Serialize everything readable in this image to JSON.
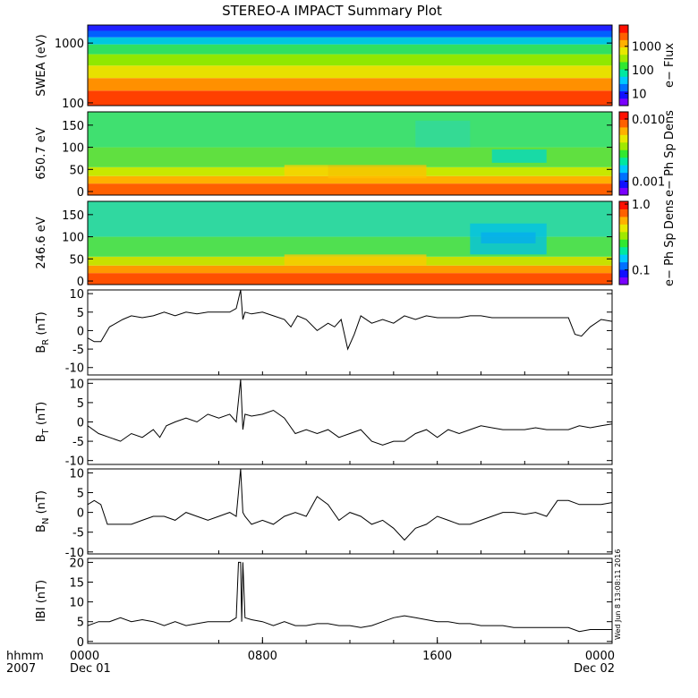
{
  "title": "STEREO-A IMPACT Summary Plot",
  "timestamp_note": "Wed Jun  8 13:08:11 2016",
  "time_axis": {
    "unit_label": "hhmm",
    "year_label": "2007",
    "ticks": [
      {
        "t": 0,
        "label": "0000",
        "sublabel": "Dec 01"
      },
      {
        "t": 8,
        "label": "0800",
        "sublabel": ""
      },
      {
        "t": 16,
        "label": "1600",
        "sublabel": ""
      },
      {
        "t": 24,
        "label": "0000",
        "sublabel": "Dec 02"
      }
    ]
  },
  "colorbar_colors": [
    "#7a00ff",
    "#1010ff",
    "#0070ff",
    "#00c8ff",
    "#00e8a0",
    "#30e830",
    "#a0e800",
    "#e8e800",
    "#ffb000",
    "#ff6000",
    "#ff1000"
  ],
  "spectrograms": [
    {
      "name": "swea",
      "ylabel": "SWEA (eV)",
      "ylog": true,
      "ylim": [
        90,
        2000
      ],
      "yticks": [
        {
          "v": 100,
          "label": "100"
        },
        {
          "v": 1000,
          "label": "1000"
        }
      ],
      "colorbar_label": "e− Flux",
      "colorbar_log": true,
      "colorbar_range": [
        3,
        8000
      ],
      "colorbar_ticks": [
        {
          "v": 10,
          "label": "10"
        },
        {
          "v": 100,
          "label": "100"
        },
        {
          "v": 1000,
          "label": "1000"
        }
      ],
      "bands": [
        {
          "from": 90,
          "to": 160,
          "color": "#ff4000"
        },
        {
          "from": 160,
          "to": 260,
          "color": "#ff9000"
        },
        {
          "from": 260,
          "to": 420,
          "color": "#e8e000"
        },
        {
          "from": 420,
          "to": 650,
          "color": "#90e800"
        },
        {
          "from": 650,
          "to": 950,
          "color": "#30e060"
        },
        {
          "from": 950,
          "to": 1250,
          "color": "#00c8e0"
        },
        {
          "from": 1250,
          "to": 1600,
          "color": "#0060ff"
        },
        {
          "from": 1600,
          "to": 2000,
          "color": "#2020ff"
        }
      ]
    },
    {
      "name": "pad650",
      "ylabel": "650.7 eV",
      "ylog": false,
      "ylim": [
        -8,
        180
      ],
      "yticks": [
        {
          "v": 0,
          "label": "0"
        },
        {
          "v": 50,
          "label": "50"
        },
        {
          "v": 100,
          "label": "100"
        },
        {
          "v": 150,
          "label": "150"
        }
      ],
      "colorbar_label": "e− Ph Sp Dens",
      "colorbar_log": true,
      "colorbar_range": [
        0.0006,
        0.013
      ],
      "colorbar_ticks": [
        {
          "v": 0.001,
          "label": "0.001"
        },
        {
          "v": 0.01,
          "label": "0.010"
        }
      ],
      "bands": [
        {
          "from": -8,
          "to": 18,
          "color": "#ff6000"
        },
        {
          "from": 18,
          "to": 35,
          "color": "#ffb000"
        },
        {
          "from": 35,
          "to": 55,
          "color": "#c8e800"
        },
        {
          "from": 55,
          "to": 100,
          "color": "#60e040"
        },
        {
          "from": 100,
          "to": 180,
          "color": "#40e070"
        }
      ],
      "patches": [
        {
          "t0": 9.0,
          "t1": 11.0,
          "y0": 35,
          "y1": 60,
          "color": "#ffd000"
        },
        {
          "t0": 11.0,
          "t1": 15.5,
          "y0": 30,
          "y1": 60,
          "color": "#ffc000"
        },
        {
          "t0": 18.5,
          "t1": 21.0,
          "y0": 65,
          "y1": 95,
          "color": "#00d8c8"
        },
        {
          "t0": 15.0,
          "t1": 17.5,
          "y0": 100,
          "y1": 160,
          "color": "#30d8a0"
        }
      ]
    },
    {
      "name": "pad246",
      "ylabel": "246.6 eV",
      "ylog": false,
      "ylim": [
        -8,
        180
      ],
      "yticks": [
        {
          "v": 0,
          "label": "0"
        },
        {
          "v": 50,
          "label": "50"
        },
        {
          "v": 100,
          "label": "100"
        },
        {
          "v": 150,
          "label": "150"
        }
      ],
      "colorbar_label": "e− Ph Sp Dens",
      "colorbar_log": true,
      "colorbar_range": [
        0.06,
        1.1
      ],
      "colorbar_ticks": [
        {
          "v": 0.1,
          "label": "0.1"
        },
        {
          "v": 1.0,
          "label": "1.0"
        }
      ],
      "bands": [
        {
          "from": -8,
          "to": 18,
          "color": "#ff5000"
        },
        {
          "from": 18,
          "to": 35,
          "color": "#ff9800"
        },
        {
          "from": 35,
          "to": 55,
          "color": "#c8e000"
        },
        {
          "from": 55,
          "to": 100,
          "color": "#50e050"
        },
        {
          "from": 100,
          "to": 180,
          "color": "#30d8a0"
        }
      ],
      "patches": [
        {
          "t0": 18.0,
          "t1": 20.5,
          "y0": 85,
          "y1": 110,
          "color": "#1070ff"
        },
        {
          "t0": 17.5,
          "t1": 21.0,
          "y0": 60,
          "y1": 130,
          "color": "#00c0e8"
        },
        {
          "t0": 9.0,
          "t1": 15.5,
          "y0": 35,
          "y1": 60,
          "color": "#ffc800"
        }
      ]
    }
  ],
  "line_panels": [
    {
      "name": "br",
      "ylabel": "B",
      "ylabel_sub": "R",
      "ylabel_unit": " (nT)",
      "ylim": [
        -12,
        11
      ],
      "yticks": [
        {
          "v": -10,
          "label": "-10"
        },
        {
          "v": -5,
          "label": "-5"
        },
        {
          "v": 0,
          "label": "0"
        },
        {
          "v": 5,
          "label": "5"
        },
        {
          "v": 10,
          "label": "10"
        }
      ],
      "t": [
        0,
        0.3,
        0.6,
        0.8,
        1.0,
        1.3,
        1.6,
        2.0,
        2.5,
        3.0,
        3.5,
        4.0,
        4.5,
        5.0,
        5.5,
        6.0,
        6.5,
        6.8,
        7.0,
        7.1,
        7.2,
        7.5,
        8.0,
        8.5,
        9.0,
        9.3,
        9.6,
        10.0,
        10.5,
        11.0,
        11.3,
        11.6,
        11.9,
        12.2,
        12.5,
        13.0,
        13.5,
        14.0,
        14.5,
        15.0,
        15.5,
        16.0,
        16.5,
        17.0,
        17.5,
        18.0,
        18.5,
        19.0,
        19.5,
        20.0,
        20.5,
        21.0,
        21.5,
        22.0,
        22.3,
        22.6,
        23.0,
        23.5,
        24.0
      ],
      "y": [
        -2,
        -3,
        -3,
        -1,
        1,
        2,
        3,
        4,
        3.5,
        4,
        5,
        4,
        5,
        4.5,
        5,
        5,
        5,
        6,
        11,
        3,
        5,
        4.5,
        5,
        4,
        3,
        1,
        4,
        3,
        0,
        2,
        1,
        3,
        -5,
        -1,
        4,
        2,
        3,
        2,
        4,
        3,
        4,
        3.5,
        3.5,
        3.5,
        4,
        4,
        3.5,
        3.5,
        3.5,
        3.5,
        3.5,
        3.5,
        3.5,
        3.5,
        -1,
        -1.5,
        1,
        3,
        2.5
      ]
    },
    {
      "name": "bt",
      "ylabel": "B",
      "ylabel_sub": "T",
      "ylabel_unit": " (nT)",
      "ylim": [
        -11,
        11
      ],
      "yticks": [
        {
          "v": -10,
          "label": "-10"
        },
        {
          "v": -5,
          "label": "-5"
        },
        {
          "v": 0,
          "label": "0"
        },
        {
          "v": 5,
          "label": "5"
        },
        {
          "v": 10,
          "label": "10"
        }
      ],
      "t": [
        0,
        0.5,
        1.0,
        1.5,
        2.0,
        2.5,
        3.0,
        3.3,
        3.6,
        4.0,
        4.5,
        5.0,
        5.5,
        6.0,
        6.5,
        6.8,
        7.0,
        7.1,
        7.2,
        7.5,
        8.0,
        8.5,
        9.0,
        9.5,
        10.0,
        10.5,
        11.0,
        11.5,
        12.0,
        12.5,
        13.0,
        13.5,
        14.0,
        14.5,
        15.0,
        15.5,
        16.0,
        16.5,
        17.0,
        17.5,
        18.0,
        18.5,
        19.0,
        19.5,
        20.0,
        20.5,
        21.0,
        21.5,
        22.0,
        22.5,
        23.0,
        23.5,
        24.0
      ],
      "y": [
        -1,
        -3,
        -4,
        -5,
        -3,
        -4,
        -2,
        -4,
        -1,
        0,
        1,
        0,
        2,
        1,
        2,
        0,
        11,
        -2,
        2,
        1.5,
        2,
        3,
        1,
        -3,
        -2,
        -3,
        -2,
        -4,
        -3,
        -2,
        -5,
        -6,
        -5,
        -5,
        -3,
        -2,
        -4,
        -2,
        -3,
        -2,
        -1,
        -1.5,
        -2,
        -2,
        -2,
        -1.5,
        -2,
        -2,
        -2,
        -1,
        -1.5,
        -1,
        -0.5
      ]
    },
    {
      "name": "bn",
      "ylabel": "B",
      "ylabel_sub": "N",
      "ylabel_unit": " (nT)",
      "ylim": [
        -10.5,
        11
      ],
      "yticks": [
        {
          "v": -10,
          "label": "-10"
        },
        {
          "v": -5,
          "label": "-5"
        },
        {
          "v": 0,
          "label": "0"
        },
        {
          "v": 5,
          "label": "5"
        },
        {
          "v": 10,
          "label": "10"
        }
      ],
      "t": [
        0,
        0.3,
        0.6,
        0.9,
        1.2,
        1.5,
        2.0,
        2.5,
        3.0,
        3.5,
        4.0,
        4.5,
        5.0,
        5.5,
        6.0,
        6.5,
        6.8,
        7.0,
        7.1,
        7.2,
        7.5,
        8.0,
        8.5,
        9.0,
        9.5,
        10.0,
        10.5,
        11.0,
        11.5,
        12.0,
        12.5,
        13.0,
        13.5,
        14.0,
        14.5,
        15.0,
        15.5,
        16.0,
        16.5,
        17.0,
        17.5,
        18.0,
        18.5,
        19.0,
        19.5,
        20.0,
        20.5,
        21.0,
        21.5,
        22.0,
        22.5,
        23.0,
        23.5,
        24.0
      ],
      "y": [
        2,
        3,
        2,
        -3,
        -3,
        -3,
        -3,
        -2,
        -1,
        -1,
        -2,
        0,
        -1,
        -2,
        -1,
        0,
        -1,
        11,
        0,
        -1,
        -3,
        -2,
        -3,
        -1,
        0,
        -1,
        4,
        2,
        -2,
        0,
        -1,
        -3,
        -2,
        -4,
        -7,
        -4,
        -3,
        -1,
        -2,
        -3,
        -3,
        -2,
        -1,
        0,
        0,
        -0.5,
        0,
        -1,
        3,
        3,
        2,
        2,
        2,
        2.5
      ]
    },
    {
      "name": "bmag",
      "ylabel": "IBI",
      "ylabel_sub": "",
      "ylabel_unit": " (nT)",
      "ylim": [
        -0.5,
        21
      ],
      "yticks": [
        {
          "v": 0,
          "label": "0"
        },
        {
          "v": 5,
          "label": "5"
        },
        {
          "v": 10,
          "label": "10"
        },
        {
          "v": 15,
          "label": "15"
        },
        {
          "v": 20,
          "label": "20"
        }
      ],
      "t": [
        0,
        0.5,
        1.0,
        1.5,
        2.0,
        2.5,
        3.0,
        3.5,
        4.0,
        4.5,
        5.0,
        5.5,
        6.0,
        6.5,
        6.8,
        6.9,
        7.0,
        7.05,
        7.1,
        7.2,
        7.5,
        8.0,
        8.5,
        9.0,
        9.5,
        10.0,
        10.5,
        11.0,
        11.5,
        12.0,
        12.5,
        13.0,
        13.5,
        14.0,
        14.5,
        15.0,
        15.5,
        16.0,
        16.5,
        17.0,
        17.5,
        18.0,
        18.5,
        19.0,
        19.5,
        20.0,
        20.5,
        21.0,
        21.5,
        22.0,
        22.5,
        23.0,
        23.5,
        24.0
      ],
      "y": [
        4,
        5,
        5,
        6,
        5,
        5.5,
        5,
        4,
        5,
        4,
        4.5,
        5,
        5,
        5,
        6,
        20,
        20,
        5,
        20,
        6,
        5.5,
        5,
        4,
        5,
        4,
        4,
        4.5,
        4.5,
        4,
        4,
        3.5,
        4,
        5,
        6,
        6.5,
        6,
        5.5,
        5,
        5,
        4.5,
        4.5,
        4,
        4,
        4,
        3.5,
        3.5,
        3.5,
        3.5,
        3.5,
        3.5,
        2.5,
        3,
        3,
        3
      ]
    }
  ]
}
